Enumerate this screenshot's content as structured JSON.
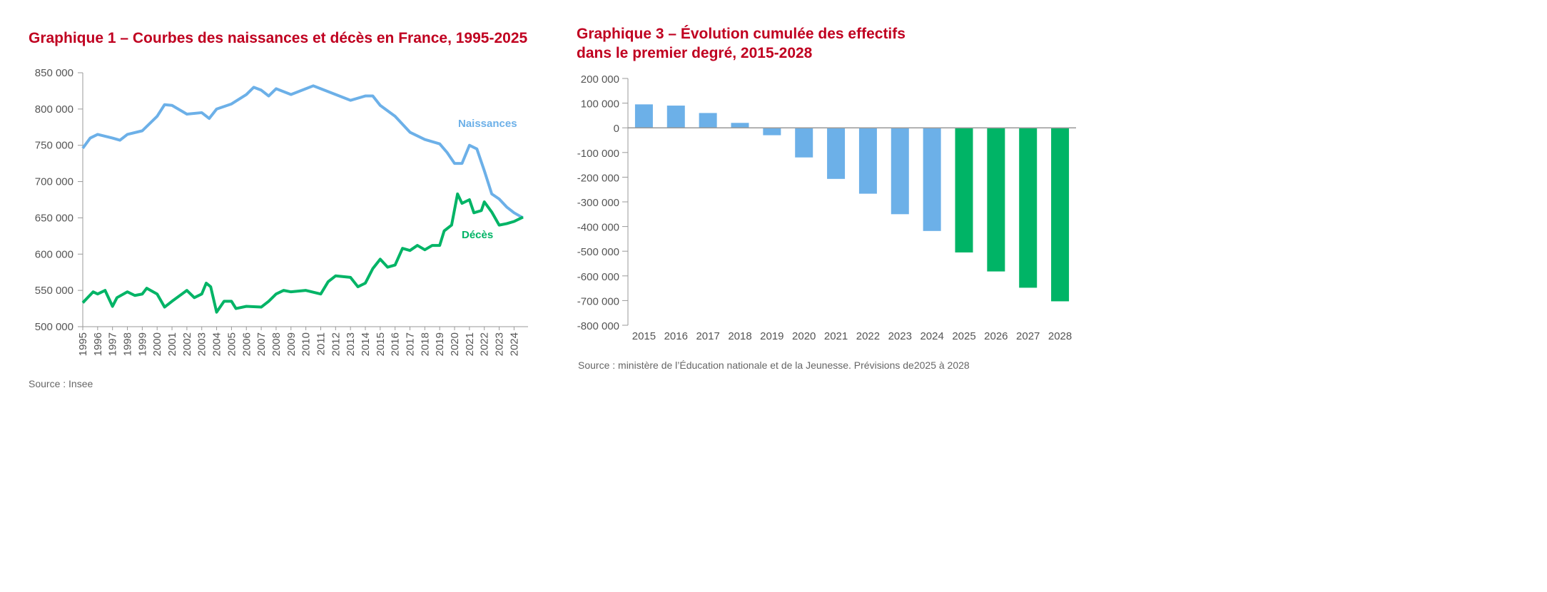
{
  "colors": {
    "births": "#6cb0e8",
    "deaths": "#00b466",
    "observed": "#6cb0e8",
    "forecast": "#00b466",
    "title": "#c00020"
  },
  "chart_data": [
    {
      "type": "line",
      "title": "Graphique 1 – Courbes des naissances et décès en France, 1995-2025",
      "source": "Source : Insee",
      "ylim": [
        500000,
        850000
      ],
      "yticks": [
        850000,
        800000,
        750000,
        700000,
        650000,
        600000,
        550000,
        500000
      ],
      "ytick_labels": [
        "850 000",
        "800 000",
        "750 000",
        "700 000",
        "650 000",
        "600 000",
        "550 000",
        "500 000"
      ],
      "xticks": [
        "1995",
        "1996",
        "1997",
        "1998",
        "1999",
        "2000",
        "2001",
        "2002",
        "2003",
        "2004",
        "2005",
        "2006",
        "2007",
        "2008",
        "2009",
        "2010",
        "2011",
        "2012",
        "2013",
        "2014",
        "2015",
        "2016",
        "2017",
        "2018",
        "2019",
        "2020",
        "2021",
        "2022",
        "2023",
        "2024"
      ],
      "xlim": [
        1995,
        2024.7
      ],
      "series": [
        {
          "name": "Naissances",
          "x": [
            1995,
            1995.5,
            1996,
            1997,
            1997.5,
            1998,
            1999,
            2000,
            2000.5,
            2001,
            2002,
            2003,
            2003.5,
            2004,
            2005,
            2006,
            2006.5,
            2007,
            2007.5,
            2008,
            2009,
            2010,
            2010.5,
            2011,
            2012,
            2013,
            2014,
            2014.5,
            2015,
            2016,
            2017,
            2018,
            2019,
            2019.5,
            2020,
            2020.5,
            2021,
            2021.5,
            2022,
            2022.5,
            2023,
            2023.5,
            2024,
            2024.6
          ],
          "y": [
            746000,
            760000,
            765000,
            760000,
            757000,
            765000,
            770000,
            790000,
            806000,
            805000,
            793000,
            795000,
            787000,
            800000,
            807000,
            820000,
            830000,
            826000,
            818000,
            828000,
            820000,
            828000,
            832000,
            828000,
            820000,
            812000,
            818000,
            818000,
            805000,
            790000,
            768000,
            758000,
            752000,
            740000,
            725000,
            725000,
            750000,
            745000,
            715000,
            683000,
            676000,
            665000,
            657000,
            650000
          ]
        },
        {
          "name": "Décès",
          "x": [
            1995,
            1995.7,
            1996,
            1996.5,
            1997,
            1997.3,
            1998,
            1998.5,
            1999,
            1999.3,
            2000,
            2000.5,
            2001,
            2002,
            2002.5,
            2003,
            2003.3,
            2003.6,
            2004,
            2004.5,
            2005,
            2005.3,
            2006,
            2007,
            2007.5,
            2008,
            2008.5,
            2009,
            2010,
            2011,
            2011.5,
            2012,
            2013,
            2013.5,
            2014,
            2014.5,
            2015,
            2015.5,
            2016,
            2016.5,
            2017,
            2017.5,
            2018,
            2018.5,
            2019,
            2019.3,
            2019.8,
            2020.2,
            2020.5,
            2021,
            2021.3,
            2021.8,
            2022,
            2022.5,
            2023,
            2023.5,
            2024,
            2024.6
          ],
          "y": [
            533000,
            548000,
            545000,
            550000,
            528000,
            540000,
            548000,
            543000,
            545000,
            553000,
            545000,
            527000,
            535000,
            550000,
            540000,
            545000,
            560000,
            555000,
            520000,
            535000,
            535000,
            525000,
            528000,
            527000,
            535000,
            545000,
            550000,
            548000,
            550000,
            545000,
            562000,
            570000,
            568000,
            555000,
            560000,
            580000,
            593000,
            582000,
            585000,
            608000,
            605000,
            612000,
            606000,
            612000,
            612000,
            632000,
            640000,
            683000,
            670000,
            675000,
            657000,
            660000,
            672000,
            658000,
            640000,
            642000,
            645000,
            651000
          ]
        }
      ]
    },
    {
      "type": "bar",
      "title": "Graphique 3 – Évolution cumulée des effectifs dans le premier degré, 2015-2028",
      "title_lines": [
        "Graphique 3 – Évolution cumulée des effectifs",
        "dans le premier degré, 2015-2028"
      ],
      "source": "Source : ministère de l’Éducation nationale et de la Jeunesse. Prévisions de2025 à 2028",
      "ylim": [
        -800000,
        200000
      ],
      "yticks": [
        200000,
        100000,
        0,
        -100000,
        -200000,
        -300000,
        -400000,
        -500000,
        -600000,
        -700000,
        -800000
      ],
      "ytick_labels": [
        "200 000",
        "100 000",
        "0",
        "-100 000",
        "-200 000",
        "-300 000",
        "-400 000",
        "-500 000",
        "-600 000",
        "-700 000",
        "-800 000"
      ],
      "categories": [
        "2015",
        "2016",
        "2017",
        "2018",
        "2019",
        "2020",
        "2021",
        "2022",
        "2023",
        "2024",
        "2025",
        "2026",
        "2027",
        "2028"
      ],
      "values": [
        95000,
        90000,
        60000,
        20000,
        -30000,
        -120000,
        -207000,
        -267000,
        -350000,
        -418000,
        -505000,
        -582000,
        -648000,
        -703000
      ],
      "forecast": [
        false,
        false,
        false,
        false,
        false,
        false,
        false,
        false,
        false,
        false,
        true,
        true,
        true,
        true
      ]
    }
  ]
}
